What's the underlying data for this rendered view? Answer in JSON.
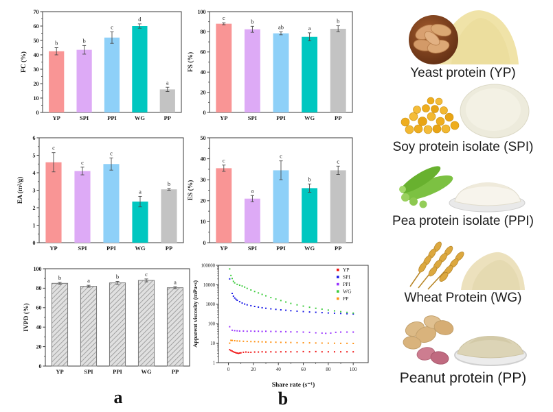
{
  "figure": {
    "panel_a_label": "a",
    "panel_b_label": "b"
  },
  "colors": {
    "bar_series": [
      "#f99595",
      "#ddaaf6",
      "#8ed0f8",
      "#00c7c0",
      "#c3c3c3"
    ],
    "hatch_bar_fill": "#e0e0e0",
    "hatch_line": "#8f8f8f",
    "error_bar": "#4a4a4a",
    "axis": "#3a3a3a"
  },
  "chart_data": [
    {
      "id": "fc",
      "type": "bar",
      "ylabel": "FC (%)",
      "categories": [
        "YP",
        "SPI",
        "PPI",
        "WG",
        "PP"
      ],
      "values": [
        42.5,
        43.5,
        52,
        60,
        16
      ],
      "errors": [
        2.5,
        3,
        4,
        1.5,
        1.5
      ],
      "letters": [
        "b",
        "b",
        "c",
        "d",
        "a"
      ],
      "ylim": [
        0,
        70
      ],
      "ytick_step": 10,
      "grid": false
    },
    {
      "id": "fs",
      "type": "bar",
      "ylabel": "FS (%)",
      "categories": [
        "YP",
        "SPI",
        "PPI",
        "WG",
        "PP"
      ],
      "values": [
        88,
        82.5,
        78.5,
        75,
        83
      ],
      "errors": [
        1,
        3,
        1.5,
        4,
        3
      ],
      "letters": [
        "c",
        "b",
        "ab",
        "a",
        "b"
      ],
      "ylim": [
        0,
        100
      ],
      "ytick_step": 20,
      "grid": false
    },
    {
      "id": "ea",
      "type": "bar",
      "ylabel": "EA (m²/g)",
      "categories": [
        "YP",
        "SPI",
        "PPI",
        "WG",
        "PP"
      ],
      "values": [
        4.6,
        4.1,
        4.5,
        2.35,
        3.05
      ],
      "errors": [
        0.55,
        0.22,
        0.35,
        0.3,
        0.05
      ],
      "letters": [
        "c",
        "c",
        "c",
        "a",
        "b"
      ],
      "ylim": [
        0,
        6
      ],
      "ytick_step": 1,
      "grid": false
    },
    {
      "id": "es",
      "type": "bar",
      "ylabel": "ES (%)",
      "categories": [
        "YP",
        "SPI",
        "PPI",
        "WG",
        "PP"
      ],
      "values": [
        35.5,
        21,
        34.5,
        26,
        34.5
      ],
      "errors": [
        1.5,
        1.5,
        4.5,
        2,
        2
      ],
      "letters": [
        "c",
        "a",
        "c",
        "b",
        "c"
      ],
      "ylim": [
        0,
        50
      ],
      "ytick_step": 10,
      "grid": false
    },
    {
      "id": "ivpd",
      "type": "bar",
      "hatch": true,
      "ylabel": "IVPD (%)",
      "categories": [
        "YP",
        "SPI",
        "PPI",
        "WG",
        "PP"
      ],
      "values": [
        85,
        82,
        85.5,
        88,
        80.5
      ],
      "errors": [
        1,
        1,
        1.5,
        1.5,
        1
      ],
      "letters": [
        "b",
        "a",
        "b",
        "c",
        "a"
      ],
      "ylim": [
        0,
        100
      ],
      "ytick_step": 20,
      "grid": false
    },
    {
      "id": "visc",
      "type": "scatter",
      "xlabel": "Share rate (s⁻¹)",
      "ylabel": "Apparent viscosity (mPa·s)",
      "xlim": [
        -8,
        112
      ],
      "xticks": [
        0,
        20,
        40,
        60,
        80,
        100
      ],
      "yscale": "log",
      "ylim": [
        1,
        100000
      ],
      "yticks": [
        1,
        10,
        100,
        1000,
        10000,
        100000
      ],
      "legend_position": "top-right",
      "series": [
        {
          "name": "YP",
          "color": "#f01414",
          "points": [
            [
              1,
              4.6
            ],
            [
              2,
              4.2
            ],
            [
              3,
              3.9
            ],
            [
              4,
              3.6
            ],
            [
              5,
              3.4
            ],
            [
              6,
              3.2
            ],
            [
              7,
              3.1
            ],
            [
              8,
              3.0
            ],
            [
              9,
              3.1
            ],
            [
              10,
              3.2
            ],
            [
              12,
              3.4
            ],
            [
              14,
              3.5
            ],
            [
              16,
              3.4
            ],
            [
              18,
              3.4
            ],
            [
              21,
              3.5
            ],
            [
              24,
              3.5
            ],
            [
              27,
              3.6
            ],
            [
              30,
              3.5
            ],
            [
              34,
              3.6
            ],
            [
              38,
              3.5
            ],
            [
              42,
              3.6
            ],
            [
              46,
              3.6
            ],
            [
              50,
              3.6
            ],
            [
              55,
              3.6
            ],
            [
              60,
              3.7
            ],
            [
              65,
              3.6
            ],
            [
              70,
              3.7
            ],
            [
              75,
              3.6
            ],
            [
              80,
              3.6
            ],
            [
              85,
              3.6
            ],
            [
              90,
              3.6
            ],
            [
              95,
              3.6
            ],
            [
              100,
              3.6
            ]
          ]
        },
        {
          "name": "SPI",
          "color": "#1a1ae6",
          "points": [
            [
              1,
              20000
            ],
            [
              3,
              3600
            ],
            [
              4,
              2600
            ],
            [
              5,
              2100
            ],
            [
              6,
              1800
            ],
            [
              7,
              1600
            ],
            [
              9,
              1350
            ],
            [
              11,
              1150
            ],
            [
              13,
              1020
            ],
            [
              15,
              930
            ],
            [
              18,
              840
            ],
            [
              21,
              770
            ],
            [
              24,
              710
            ],
            [
              27,
              660
            ],
            [
              30,
              620
            ],
            [
              34,
              580
            ],
            [
              38,
              545
            ],
            [
              42,
              515
            ],
            [
              46,
              490
            ],
            [
              50,
              465
            ],
            [
              55,
              440
            ],
            [
              60,
              420
            ],
            [
              65,
              400
            ],
            [
              70,
              385
            ],
            [
              75,
              370
            ],
            [
              80,
              355
            ],
            [
              85,
              345
            ],
            [
              90,
              335
            ],
            [
              95,
              325
            ],
            [
              100,
              315
            ]
          ]
        },
        {
          "name": "PPI",
          "color": "#9933ff",
          "points": [
            [
              1,
              70
            ],
            [
              3,
              46
            ],
            [
              5,
              44
            ],
            [
              7,
              43
            ],
            [
              9,
              42
            ],
            [
              12,
              42
            ],
            [
              15,
              41
            ],
            [
              18,
              42
            ],
            [
              21,
              41
            ],
            [
              24,
              41
            ],
            [
              27,
              40
            ],
            [
              30,
              41
            ],
            [
              34,
              40
            ],
            [
              38,
              40
            ],
            [
              42,
              39
            ],
            [
              46,
              39
            ],
            [
              50,
              38
            ],
            [
              55,
              38
            ],
            [
              60,
              37
            ],
            [
              65,
              36
            ],
            [
              70,
              34
            ],
            [
              75,
              33
            ],
            [
              78,
              32
            ],
            [
              82,
              33
            ],
            [
              86,
              36
            ],
            [
              90,
              37
            ],
            [
              95,
              37
            ],
            [
              100,
              37
            ]
          ]
        },
        {
          "name": "WG",
          "color": "#3ecc3e",
          "points": [
            [
              1,
              65000
            ],
            [
              2,
              30000
            ],
            [
              3,
              21000
            ],
            [
              4,
              15000
            ],
            [
              5,
              12500
            ],
            [
              7,
              10500
            ],
            [
              9,
              9500
            ],
            [
              11,
              8600
            ],
            [
              13,
              7600
            ],
            [
              15,
              6500
            ],
            [
              18,
              5400
            ],
            [
              21,
              4500
            ],
            [
              24,
              3800
            ],
            [
              27,
              3200
            ],
            [
              30,
              2700
            ],
            [
              34,
              2200
            ],
            [
              38,
              1850
            ],
            [
              42,
              1550
            ],
            [
              46,
              1300
            ],
            [
              50,
              1100
            ],
            [
              55,
              930
            ],
            [
              60,
              800
            ],
            [
              65,
              700
            ],
            [
              70,
              620
            ],
            [
              75,
              560
            ],
            [
              80,
              500
            ],
            [
              85,
              455
            ],
            [
              90,
              415
            ],
            [
              95,
              380
            ],
            [
              100,
              350
            ]
          ]
        },
        {
          "name": "PP",
          "color": "#ff9214",
          "points": [
            [
              1,
              10
            ],
            [
              2,
              14
            ],
            [
              3,
              13.8
            ],
            [
              5,
              13.4
            ],
            [
              7,
              13
            ],
            [
              9,
              12.8
            ],
            [
              12,
              12.5
            ],
            [
              15,
              12.3
            ],
            [
              18,
              12.1
            ],
            [
              21,
              12
            ],
            [
              24,
              11.8
            ],
            [
              27,
              11.7
            ],
            [
              30,
              11.5
            ],
            [
              34,
              11.3
            ],
            [
              38,
              11.2
            ],
            [
              42,
              11
            ],
            [
              46,
              10.9
            ],
            [
              50,
              10.8
            ],
            [
              55,
              10.6
            ],
            [
              60,
              10.5
            ],
            [
              65,
              10.4
            ],
            [
              70,
              10.2
            ],
            [
              75,
              10.1
            ],
            [
              80,
              10
            ],
            [
              85,
              9.9
            ],
            [
              90,
              9.8
            ],
            [
              95,
              9.8
            ],
            [
              100,
              9.7
            ]
          ]
        }
      ]
    }
  ],
  "samples": [
    {
      "caption": "Yeast protein (YP)"
    },
    {
      "caption": "Soy protein isolate (SPI)"
    },
    {
      "caption": "Pea protein isolate (PPI)"
    },
    {
      "caption": "Wheat Protein (WG)"
    },
    {
      "caption": "Peanut protein (PP)"
    }
  ]
}
